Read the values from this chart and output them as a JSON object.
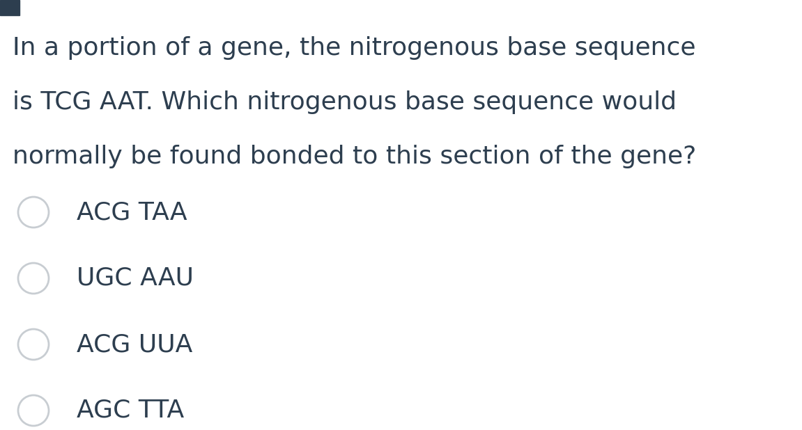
{
  "background_color": "#ffffff",
  "question_lines": [
    "In a portion of a gene, the nitrogenous base sequence",
    "is TCG AAT. Which nitrogenous base sequence would",
    "normally be found bonded to this section of the gene?"
  ],
  "options": [
    "ACG TAA",
    "UGC AAU",
    "ACG UUA",
    "AGC TTA"
  ],
  "question_color": "#2d3e4f",
  "option_color": "#2d3e4f",
  "circle_edge_color": "#c8cdd2",
  "circle_face_color": "#ffffff",
  "question_fontsize": 26,
  "option_fontsize": 26,
  "small_square_color": "#2d3e4f",
  "fig_width": 11.51,
  "fig_height": 6.18,
  "dpi": 100
}
